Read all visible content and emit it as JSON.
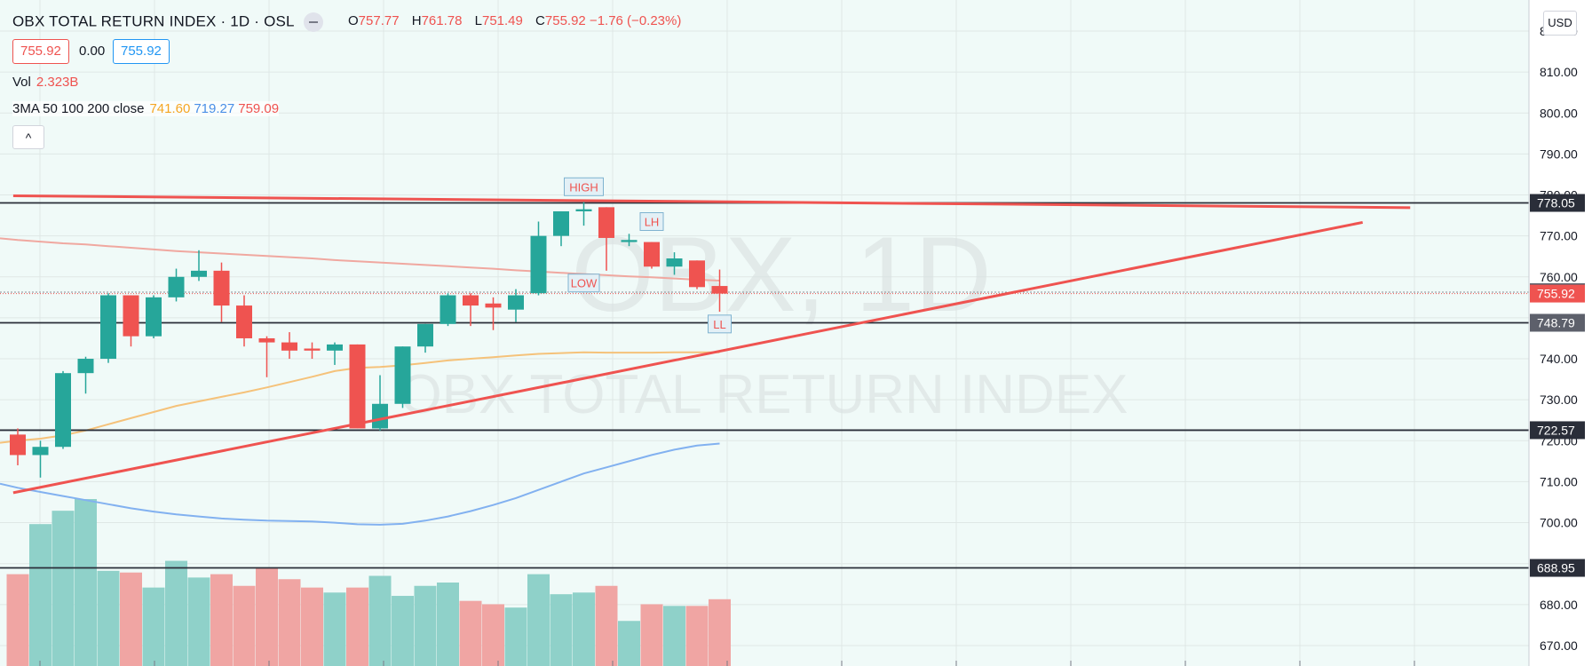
{
  "header": {
    "title": "OBX TOTAL RETURN INDEX · 1D · OSL",
    "ohlc": {
      "o_key": "O",
      "o": "757.77",
      "h_key": "H",
      "h": "761.78",
      "l_key": "L",
      "l": "751.49",
      "c_key": "C",
      "c": "755.92 −1.76 (−0.23%)"
    },
    "sell_price": "755.92",
    "spread": "0.00",
    "buy_price": "755.92",
    "vol_label": "Vol",
    "vol_value": "2.323B",
    "ma_label": "3MA 50 100 200 close",
    "ma_values": [
      "741.60",
      "719.27",
      "759.09"
    ],
    "collapse_glyph": "^",
    "currency": "USD"
  },
  "watermark": {
    "symbol": "OBX, 1D",
    "name": "OBX TOTAL RETURN INDEX"
  },
  "colors": {
    "up": "#26a69a",
    "down": "#ef5350",
    "background": "#f0faf8",
    "grid": "#dfe8e6",
    "ma50": "#f5c27a",
    "ma100": "#82b1f0",
    "ma200": "#f0a8a0",
    "trendline": "#ef5350",
    "hline": "#2a2e39"
  },
  "chart_data": {
    "type": "candlestick",
    "y_axis": {
      "ticks": [
        820,
        810,
        800,
        790,
        780,
        770,
        760,
        750,
        740,
        730,
        720,
        710,
        700,
        690,
        680,
        670
      ],
      "range": [
        667,
        822
      ],
      "tick_format": "0.00"
    },
    "candles": [
      {
        "o": 721.5,
        "h": 723.0,
        "l": 714.0,
        "c": 716.5
      },
      {
        "o": 716.5,
        "h": 720.0,
        "l": 711.0,
        "c": 718.5
      },
      {
        "o": 718.5,
        "h": 737.0,
        "l": 718.0,
        "c": 736.5
      },
      {
        "o": 736.5,
        "h": 740.5,
        "l": 731.5,
        "c": 740.0
      },
      {
        "o": 740.0,
        "h": 756.0,
        "l": 739.0,
        "c": 755.5
      },
      {
        "o": 755.5,
        "h": 755.5,
        "l": 743.0,
        "c": 745.5
      },
      {
        "o": 745.5,
        "h": 755.5,
        "l": 745.0,
        "c": 755.0
      },
      {
        "o": 755.0,
        "h": 762.0,
        "l": 754.0,
        "c": 760.0
      },
      {
        "o": 760.0,
        "h": 766.5,
        "l": 759.0,
        "c": 761.5
      },
      {
        "o": 761.5,
        "h": 763.5,
        "l": 749.0,
        "c": 753.0
      },
      {
        "o": 753.0,
        "h": 755.5,
        "l": 743.0,
        "c": 745.0
      },
      {
        "o": 745.0,
        "h": 745.5,
        "l": 735.5,
        "c": 744.0
      },
      {
        "o": 744.0,
        "h": 746.5,
        "l": 740.0,
        "c": 742.0
      },
      {
        "o": 742.5,
        "h": 744.0,
        "l": 740.0,
        "c": 742.0
      },
      {
        "o": 742.0,
        "h": 744.0,
        "l": 738.5,
        "c": 743.5
      },
      {
        "o": 743.5,
        "h": 743.5,
        "l": 723.0,
        "c": 723.0
      },
      {
        "o": 723.0,
        "h": 736.0,
        "l": 722.5,
        "c": 729.0
      },
      {
        "o": 729.0,
        "h": 743.0,
        "l": 728.0,
        "c": 743.0
      },
      {
        "o": 743.0,
        "h": 748.5,
        "l": 741.5,
        "c": 748.5
      },
      {
        "o": 748.5,
        "h": 756.0,
        "l": 748.0,
        "c": 755.5
      },
      {
        "o": 755.5,
        "h": 756.0,
        "l": 748.0,
        "c": 753.0
      },
      {
        "o": 753.5,
        "h": 755.0,
        "l": 747.0,
        "c": 752.5
      },
      {
        "o": 752.0,
        "h": 757.0,
        "l": 749.0,
        "c": 755.5
      },
      {
        "o": 756.0,
        "h": 773.5,
        "l": 755.5,
        "c": 770.0
      },
      {
        "o": 770.0,
        "h": 776.0,
        "l": 767.5,
        "c": 776.0
      },
      {
        "o": 776.0,
        "h": 778.5,
        "l": 772.5,
        "c": 776.5
      },
      {
        "o": 777.0,
        "h": 777.0,
        "l": 761.5,
        "c": 769.5
      },
      {
        "o": 768.5,
        "h": 770.5,
        "l": 767.5,
        "c": 769.0
      },
      {
        "o": 768.5,
        "h": 768.5,
        "l": 762.0,
        "c": 762.5
      },
      {
        "o": 762.5,
        "h": 766.0,
        "l": 760.5,
        "c": 764.5
      },
      {
        "o": 764.0,
        "h": 764.0,
        "l": 757.0,
        "c": 757.5
      },
      {
        "o": 757.77,
        "h": 761.78,
        "l": 751.49,
        "c": 755.92
      }
    ],
    "volume_relative": [
      0.55,
      0.85,
      0.93,
      1.0,
      0.57,
      0.56,
      0.47,
      0.63,
      0.53,
      0.55,
      0.48,
      0.59,
      0.52,
      0.47,
      0.44,
      0.47,
      0.54,
      0.42,
      0.48,
      0.5,
      0.39,
      0.37,
      0.35,
      0.55,
      0.43,
      0.44,
      0.48,
      0.27,
      0.37,
      0.36,
      0.36,
      0.4
    ],
    "ma50": [
      720.0,
      720.5,
      721.3,
      722.5,
      724.0,
      725.5,
      727.0,
      728.5,
      729.6,
      730.7,
      731.8,
      733.0,
      734.3,
      735.6,
      737.0,
      737.8,
      738.0,
      738.4,
      739.0,
      739.6,
      740.0,
      740.4,
      740.8,
      741.2,
      741.4,
      741.6,
      741.5,
      741.5,
      741.5,
      741.6,
      741.6,
      741.6
    ],
    "ma100": [
      708.5,
      707.5,
      706.5,
      705.5,
      704.5,
      703.5,
      702.7,
      702.0,
      701.5,
      701.0,
      700.7,
      700.5,
      700.4,
      700.3,
      700.0,
      699.6,
      699.5,
      699.7,
      700.5,
      701.5,
      702.8,
      704.3,
      706.0,
      708.0,
      710.0,
      712.0,
      713.5,
      715.0,
      716.5,
      717.8,
      718.8,
      719.3
    ],
    "ma200": [
      769.0,
      768.6,
      768.2,
      767.9,
      767.5,
      767.1,
      766.7,
      766.3,
      766.0,
      765.7,
      765.4,
      765.1,
      764.8,
      764.5,
      764.1,
      763.8,
      763.5,
      763.2,
      762.9,
      762.6,
      762.3,
      762.0,
      761.6,
      761.3,
      761.0,
      760.7,
      760.4,
      760.1,
      759.9,
      759.6,
      759.3,
      759.09
    ],
    "horizontal_levels": [
      778.05,
      748.79,
      722.57,
      688.95
    ],
    "current_price": 755.92,
    "dotted_level": 756.26,
    "price_labels": [
      {
        "value": "778.05",
        "style": "dark"
      },
      {
        "value": "756.26",
        "style": "gray"
      },
      {
        "value": "755.92",
        "style": "red"
      },
      {
        "value": "748.79",
        "style": "gray"
      },
      {
        "value": "722.57",
        "style": "dark"
      },
      {
        "value": "688.95",
        "style": "dark"
      }
    ],
    "trendlines": [
      {
        "from": {
          "bar": -0.2,
          "price": 779.8
        },
        "to": {
          "bar": 61.5,
          "price": 776.9
        }
      },
      {
        "from": {
          "bar": -0.2,
          "price": 707.3
        },
        "to": {
          "bar": 59.4,
          "price": 773.3
        }
      }
    ],
    "annotations": [
      {
        "text": "HIGH",
        "bar": 25,
        "price": 782.0
      },
      {
        "text": "LOW",
        "bar": 25,
        "price": 758.5
      },
      {
        "text": "LH",
        "bar": 28,
        "price": 773.5
      },
      {
        "text": "LL",
        "bar": 31,
        "price": 748.5
      }
    ]
  }
}
